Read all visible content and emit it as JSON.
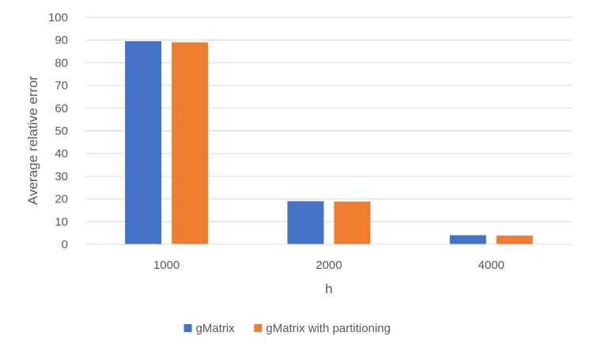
{
  "chart_data": {
    "type": "bar",
    "title": "",
    "xlabel": "h",
    "ylabel": "Average relative error",
    "categories": [
      "1000",
      "2000",
      "4000"
    ],
    "series": [
      {
        "name": "gMatrix",
        "values": [
          89.5,
          19,
          4
        ],
        "color": "#4472C4"
      },
      {
        "name": "gMatrix with partitioning",
        "values": [
          89,
          18.8,
          3.8
        ],
        "color": "#ED7D31"
      }
    ],
    "ylim": [
      0,
      100
    ],
    "yticks": [
      0,
      10,
      20,
      30,
      40,
      50,
      60,
      70,
      80,
      90,
      100
    ],
    "grid": true,
    "legend_position": "bottom"
  }
}
